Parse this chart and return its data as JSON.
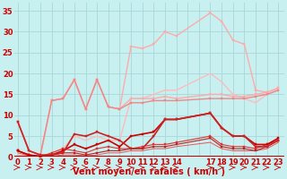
{
  "background_color": "#c8f0f0",
  "grid_color": "#a8d8d8",
  "xlabel": "Vent moyen/en rafales ( km/h )",
  "xlabel_color": "#cc0000",
  "xlabel_fontsize": 7,
  "yticks": [
    0,
    5,
    10,
    15,
    20,
    25,
    30,
    35
  ],
  "xtick_labels": [
    "0",
    "1",
    "2",
    "3",
    "4",
    "5",
    "6",
    "7",
    "8",
    "9",
    "10",
    "11",
    "12",
    "13",
    "14",
    "",
    "",
    "17",
    "18",
    "19",
    "20",
    "21",
    "22",
    "23"
  ],
  "xtick_pos": [
    0,
    1,
    2,
    3,
    4,
    5,
    6,
    7,
    8,
    9,
    10,
    11,
    12,
    13,
    14,
    15,
    16,
    17,
    18,
    19,
    20,
    21,
    22,
    23
  ],
  "ylim": [
    0,
    37
  ],
  "xlim": [
    -0.3,
    23.5
  ],
  "tick_color": "#cc0000",
  "tick_fontsize": 6,
  "series": [
    {
      "x": [
        0,
        1,
        2,
        3,
        4,
        5,
        6,
        7,
        8,
        9,
        10,
        11,
        12,
        13,
        14,
        17,
        18,
        19,
        20,
        21,
        22,
        23
      ],
      "xpos": [
        0,
        1,
        2,
        3,
        4,
        5,
        6,
        7,
        8,
        9,
        10,
        11,
        12,
        13,
        14,
        17,
        18,
        19,
        20,
        21,
        22,
        23
      ],
      "y": [
        1.5,
        0.3,
        0.1,
        13.5,
        14,
        18.5,
        11.5,
        18.5,
        12,
        11.5,
        26.5,
        26,
        27,
        30,
        29,
        34.5,
        32.5,
        28,
        27,
        16,
        15.5,
        16.5
      ],
      "color": "#ffaaaa",
      "lw": 1.0,
      "marker": "s",
      "ms": 2.0,
      "zorder": 2
    },
    {
      "x": [
        0,
        1,
        2,
        3,
        4,
        5,
        6,
        7,
        8,
        9,
        10,
        11,
        12,
        13,
        14,
        17,
        18,
        19,
        20,
        21,
        22,
        23
      ],
      "xpos": [
        0,
        1,
        2,
        3,
        4,
        5,
        6,
        7,
        8,
        9,
        10,
        11,
        12,
        13,
        14,
        17,
        18,
        19,
        20,
        21,
        22,
        23
      ],
      "y": [
        0.5,
        0.2,
        0.1,
        1,
        2,
        5,
        4,
        5,
        4,
        4,
        14,
        14,
        15,
        16,
        16,
        20,
        18,
        15,
        14,
        13,
        15,
        16
      ],
      "color": "#ffbbbb",
      "lw": 1.0,
      "marker": null,
      "ms": 0,
      "zorder": 2
    },
    {
      "x": [
        0,
        1,
        2,
        3,
        4,
        5,
        6,
        7,
        8,
        9,
        10,
        11,
        12,
        13,
        14,
        17,
        18,
        19,
        20,
        21,
        22,
        23
      ],
      "xpos": [
        0,
        1,
        2,
        3,
        4,
        5,
        6,
        7,
        8,
        9,
        10,
        11,
        12,
        13,
        14,
        17,
        18,
        19,
        20,
        21,
        22,
        23
      ],
      "y": [
        8.5,
        1.5,
        0.5,
        13.5,
        14,
        18.5,
        11.5,
        18.5,
        12,
        11.5,
        14,
        14,
        14,
        14.5,
        14,
        15,
        15,
        14.5,
        14.5,
        15,
        15.5,
        16.5
      ],
      "color": "#ffaaaa",
      "lw": 1.0,
      "marker": "s",
      "ms": 2.0,
      "zorder": 2
    },
    {
      "x": [
        0,
        1,
        2,
        3,
        4,
        5,
        6,
        7,
        8,
        9,
        10,
        11,
        12,
        13,
        14,
        17,
        18,
        19,
        20,
        21,
        22,
        23
      ],
      "xpos": [
        0,
        1,
        2,
        3,
        4,
        5,
        6,
        7,
        8,
        9,
        10,
        11,
        12,
        13,
        14,
        17,
        18,
        19,
        20,
        21,
        22,
        23
      ],
      "y": [
        8.5,
        1.5,
        0.5,
        13.5,
        14,
        18.5,
        11.5,
        18.5,
        12,
        11.5,
        13,
        13,
        13.5,
        13.5,
        13.5,
        14,
        14,
        14,
        14,
        14.5,
        15,
        16
      ],
      "color": "#ee8888",
      "lw": 1.0,
      "marker": "s",
      "ms": 2.0,
      "zorder": 3
    },
    {
      "x": [
        0,
        1,
        2,
        3,
        4,
        5,
        6,
        7,
        8,
        9,
        10,
        11,
        12,
        13,
        14,
        17,
        18,
        19,
        20,
        21,
        22,
        23
      ],
      "xpos": [
        0,
        1,
        2,
        3,
        4,
        5,
        6,
        7,
        8,
        9,
        10,
        11,
        12,
        13,
        14,
        17,
        18,
        19,
        20,
        21,
        22,
        23
      ],
      "y": [
        1.5,
        0.5,
        0.2,
        0.5,
        1.5,
        3,
        2,
        3,
        4,
        2.5,
        5,
        5.5,
        6,
        9,
        9,
        10.5,
        7,
        5,
        5,
        3,
        3,
        4.5
      ],
      "color": "#cc0000",
      "lw": 1.2,
      "marker": "s",
      "ms": 2.0,
      "zorder": 5
    },
    {
      "x": [
        0,
        1,
        2,
        3,
        4,
        5,
        6,
        7,
        8,
        9,
        10,
        11,
        12,
        13,
        14,
        17,
        18,
        19,
        20,
        21,
        22,
        23
      ],
      "xpos": [
        0,
        1,
        2,
        3,
        4,
        5,
        6,
        7,
        8,
        9,
        10,
        11,
        12,
        13,
        14,
        17,
        18,
        19,
        20,
        21,
        22,
        23
      ],
      "y": [
        8.5,
        1.5,
        0.5,
        0.5,
        1,
        5.5,
        5,
        6,
        5,
        4,
        2,
        2,
        5,
        9,
        9,
        10.5,
        7,
        5,
        5,
        2.5,
        2.5,
        4
      ],
      "color": "#cc2222",
      "lw": 1.2,
      "marker": "s",
      "ms": 2.0,
      "zorder": 5
    },
    {
      "x": [
        0,
        1,
        2,
        3,
        4,
        5,
        6,
        7,
        8,
        9,
        10,
        11,
        12,
        13,
        14,
        17,
        18,
        19,
        20,
        21,
        22,
        23
      ],
      "xpos": [
        0,
        1,
        2,
        3,
        4,
        5,
        6,
        7,
        8,
        9,
        10,
        11,
        12,
        13,
        14,
        17,
        18,
        19,
        20,
        21,
        22,
        23
      ],
      "y": [
        1.5,
        0.5,
        0.1,
        1,
        2,
        1.5,
        1,
        2,
        2.5,
        2,
        2,
        2.5,
        3,
        3,
        3.5,
        5,
        3,
        2.5,
        2.5,
        2,
        3,
        4
      ],
      "color": "#dd3333",
      "lw": 0.8,
      "marker": "s",
      "ms": 1.5,
      "zorder": 4
    },
    {
      "x": [
        0,
        1,
        2,
        3,
        4,
        5,
        6,
        7,
        8,
        9,
        10,
        11,
        12,
        13,
        14,
        17,
        18,
        19,
        20,
        21,
        22,
        23
      ],
      "xpos": [
        0,
        1,
        2,
        3,
        4,
        5,
        6,
        7,
        8,
        9,
        10,
        11,
        12,
        13,
        14,
        17,
        18,
        19,
        20,
        21,
        22,
        23
      ],
      "y": [
        1.5,
        0.5,
        0.1,
        0.5,
        1,
        1,
        0.5,
        1,
        1.5,
        1.5,
        2,
        2,
        2.5,
        2.5,
        3,
        4.5,
        2.5,
        2,
        2,
        1.5,
        2.5,
        4
      ],
      "color": "#bb2222",
      "lw": 0.8,
      "marker": "s",
      "ms": 1.5,
      "zorder": 4
    },
    {
      "x": [
        0,
        1,
        2,
        3,
        4,
        5,
        6,
        7,
        8,
        9,
        10,
        11,
        12,
        13,
        14,
        17,
        18,
        19,
        20,
        21,
        22,
        23
      ],
      "xpos": [
        0,
        1,
        2,
        3,
        4,
        5,
        6,
        7,
        8,
        9,
        10,
        11,
        12,
        13,
        14,
        17,
        18,
        19,
        20,
        21,
        22,
        23
      ],
      "y": [
        1,
        0.3,
        0.1,
        0.2,
        0.5,
        0.5,
        0.3,
        0.5,
        1,
        1,
        1.5,
        1.5,
        2,
        2,
        2.5,
        3.5,
        2,
        1.5,
        1.5,
        1.5,
        2,
        3.5
      ],
      "color": "#ee5555",
      "lw": 0.7,
      "marker": null,
      "ms": 0,
      "zorder": 3
    }
  ]
}
